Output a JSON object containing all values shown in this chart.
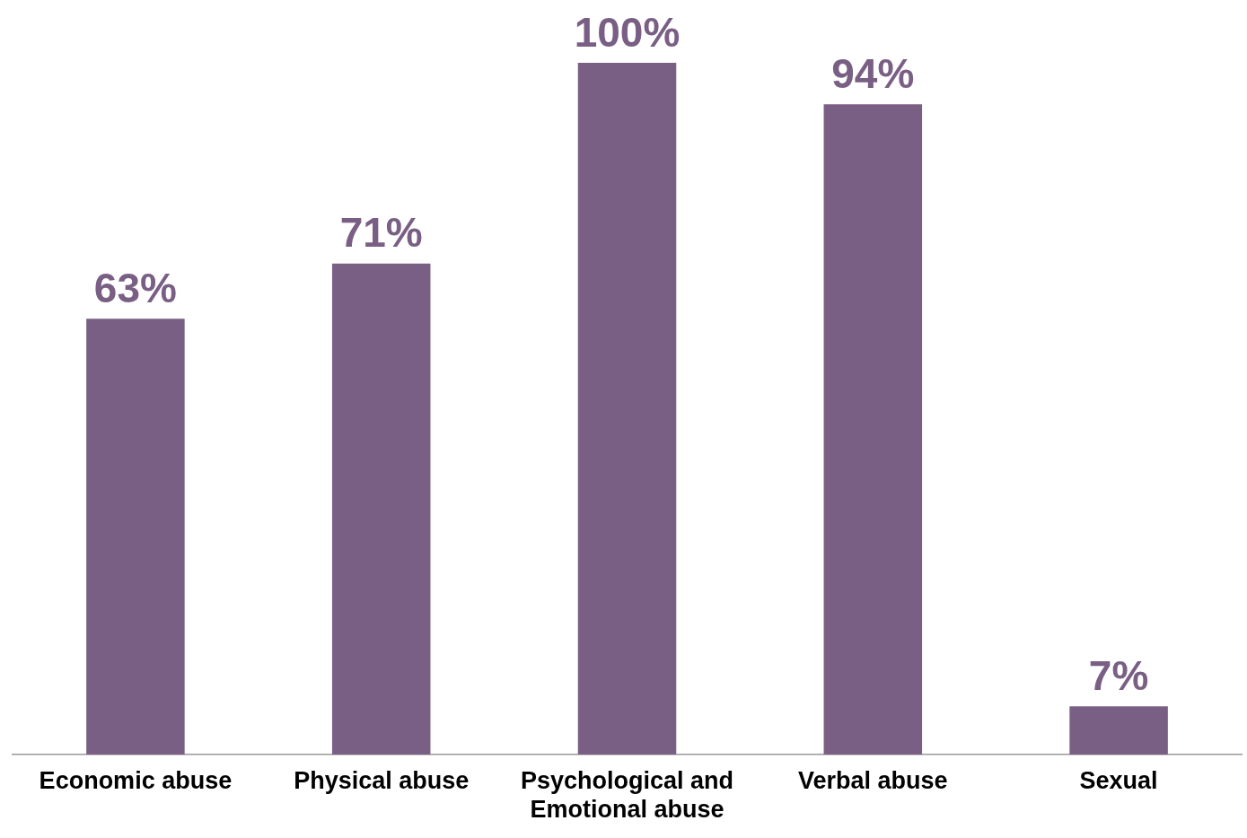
{
  "chart_data": {
    "type": "bar",
    "categories": [
      "Economic abuse",
      "Physical abuse",
      "Psychological and Emotional abuse",
      "Verbal abuse",
      "Sexual"
    ],
    "values": [
      63,
      71,
      100,
      94,
      7
    ],
    "value_labels": [
      "63%",
      "71%",
      "100%",
      "94%",
      "7%"
    ],
    "color": "#7a5f85",
    "grid": false,
    "legend": false
  }
}
